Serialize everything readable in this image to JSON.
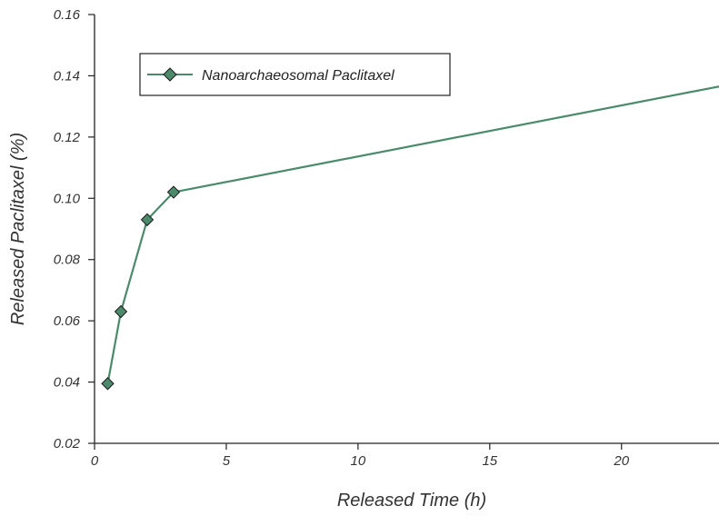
{
  "chart_data": {
    "type": "line",
    "xlabel": "Released Time (h)",
    "ylabel": "Released Paclitaxel (%)",
    "xlim": [
      0,
      23.7
    ],
    "ylim": [
      0.02,
      0.16
    ],
    "x_ticks": [
      0,
      5,
      10,
      15,
      20
    ],
    "y_ticks": [
      0.02,
      0.04,
      0.06,
      0.08,
      0.1,
      0.12,
      0.14,
      0.16
    ],
    "x_tick_labels": [
      "0",
      "5",
      "10",
      "15",
      "20"
    ],
    "y_tick_labels": [
      "0.02",
      "0.04",
      "0.06",
      "0.08",
      "0.10",
      "0.12",
      "0.14",
      "0.16"
    ],
    "grid": false,
    "legend_position": "top-left",
    "series": [
      {
        "name": "Nanoarchaeosomal Paclitaxel",
        "color": "#4c8a6c",
        "marker": "diamond",
        "x": [
          0.5,
          1,
          2,
          3,
          24
        ],
        "y": [
          0.0395,
          0.063,
          0.093,
          0.102,
          0.137
        ]
      }
    ]
  }
}
